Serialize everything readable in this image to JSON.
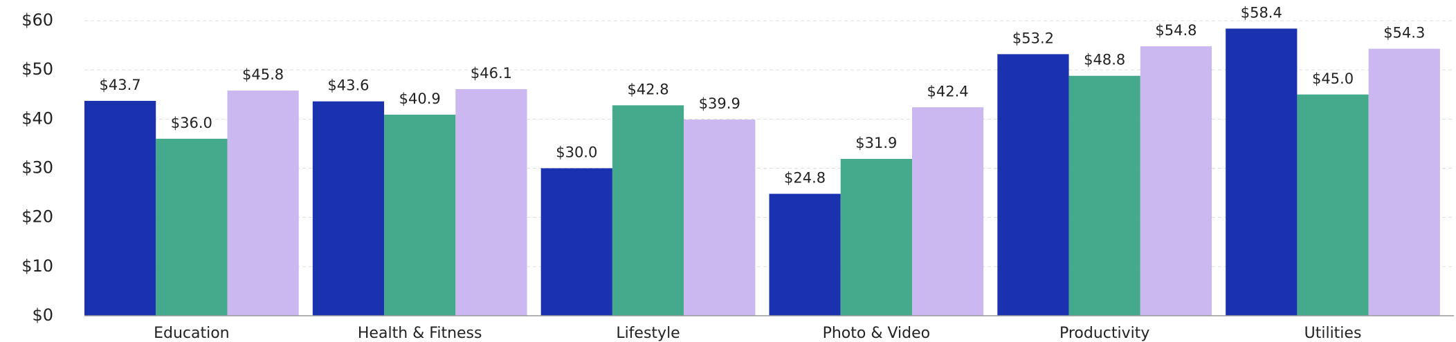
{
  "chart_data": {
    "type": "bar",
    "categories": [
      "Education",
      "Health & Fitness",
      "Lifestyle",
      "Photo & Video",
      "Productivity",
      "Utilities"
    ],
    "series": [
      {
        "color": "#1a32b0",
        "values": [
          43.7,
          43.6,
          30.0,
          24.8,
          53.2,
          58.4
        ],
        "value_labels": [
          "$43.7",
          "$43.6",
          "$30.0",
          "$24.8",
          "$53.2",
          "$58.4"
        ]
      },
      {
        "color": "#45a98c",
        "values": [
          36.0,
          40.9,
          42.8,
          31.9,
          48.8,
          45.0
        ],
        "value_labels": [
          "$36.0",
          "$40.9",
          "$42.8",
          "$31.9",
          "$48.8",
          "$45.0"
        ]
      },
      {
        "color": "#cbb8f0",
        "values": [
          45.8,
          46.1,
          39.9,
          42.4,
          54.8,
          54.3
        ],
        "value_labels": [
          "$45.8",
          "$46.1",
          "$39.9",
          "$42.4",
          "$54.8",
          "$54.3"
        ]
      }
    ],
    "ylim": [
      0,
      60
    ],
    "yticks": [
      {
        "value": 0,
        "label": "$0"
      },
      {
        "value": 10,
        "label": "$10"
      },
      {
        "value": 20,
        "label": "$20"
      },
      {
        "value": 30,
        "label": "$30"
      },
      {
        "value": 40,
        "label": "$40"
      },
      {
        "value": 50,
        "label": "$50"
      },
      {
        "value": 60,
        "label": "$60"
      }
    ],
    "grid": true
  }
}
